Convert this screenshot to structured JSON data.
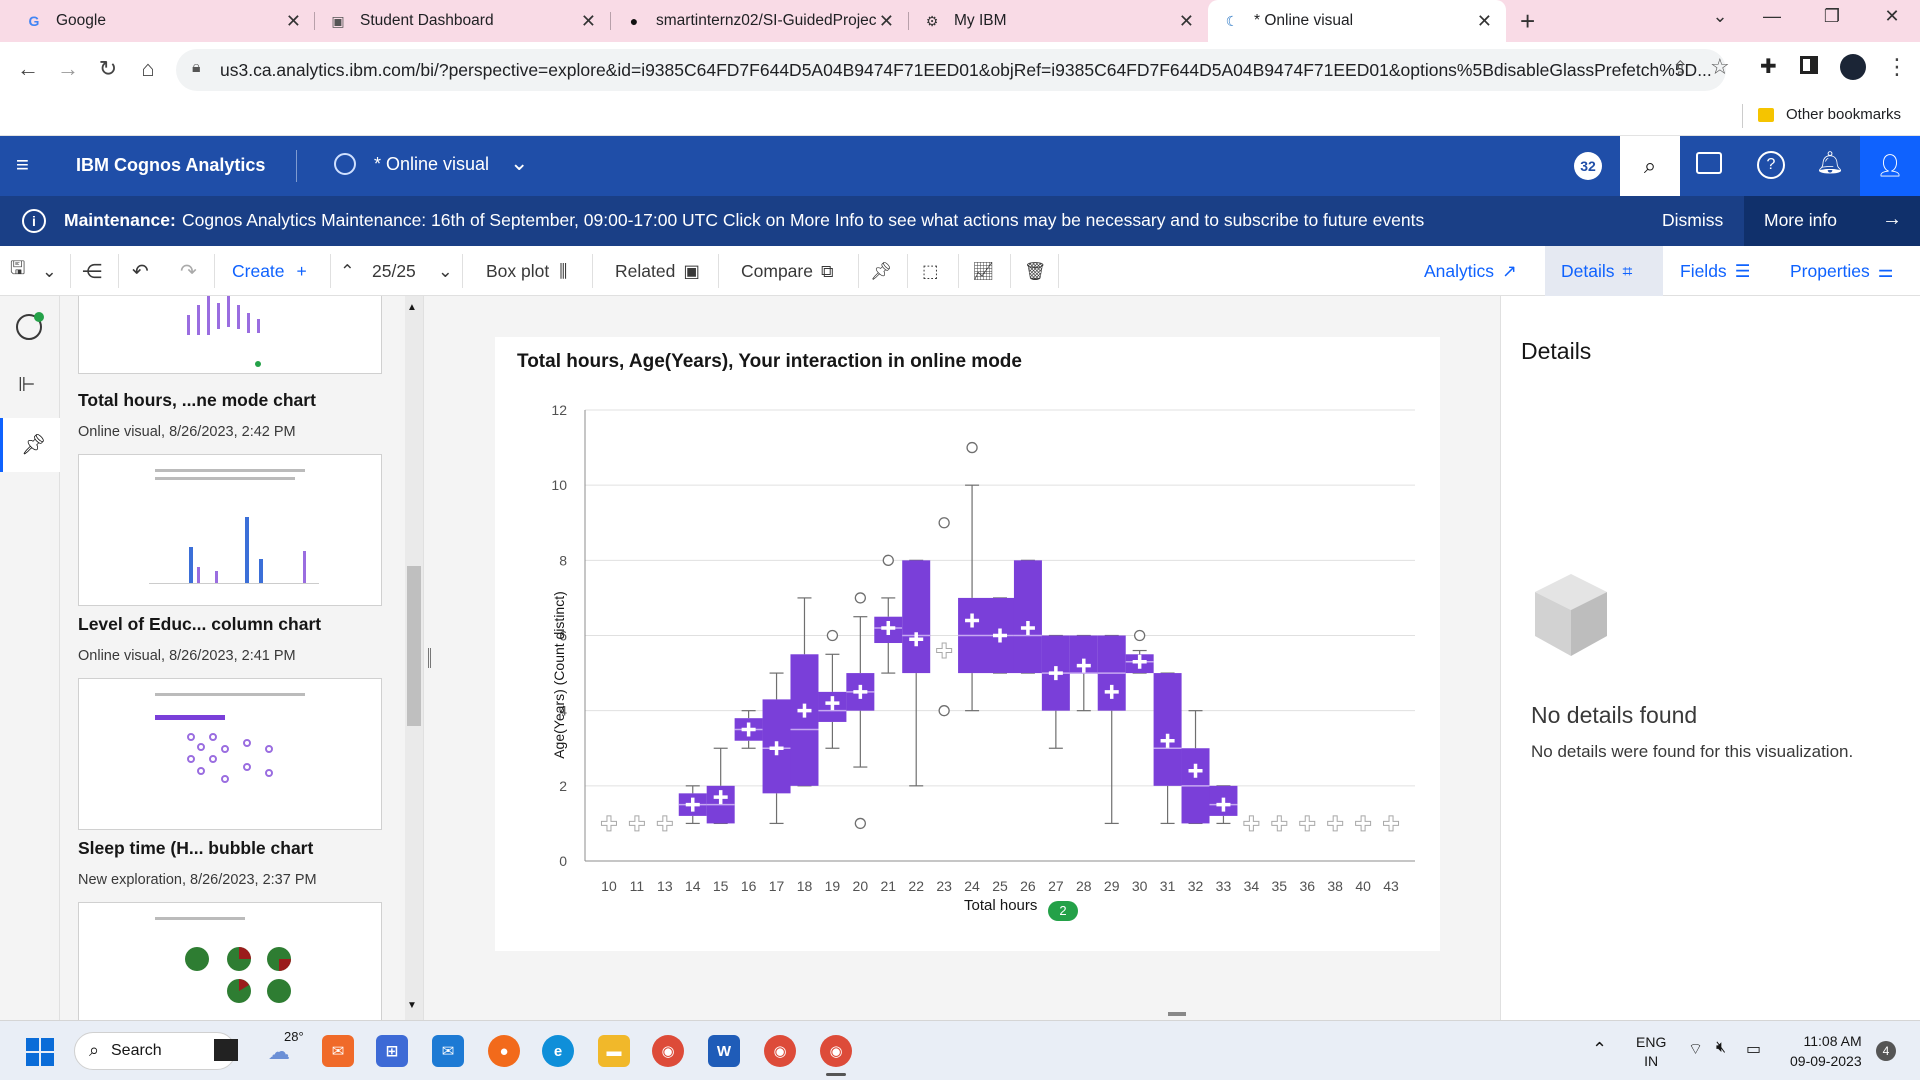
{
  "browser": {
    "tabs": [
      {
        "title": "Google",
        "icon": "G"
      },
      {
        "title": "Student Dashboard",
        "icon": "▣"
      },
      {
        "title": "smartinternz02/SI-GuidedProject",
        "icon": "●"
      },
      {
        "title": "My IBM",
        "icon": "⚙"
      },
      {
        "title": "* Online visual",
        "icon": "☾"
      }
    ],
    "url": "us3.ca.analytics.ibm.com/bi/?perspective=explore&id=i9385C64FD7F644D5A04B9474F71EED01&objRef=i9385C64FD7F644D5A04B9474F71EED01&options%5BdisableGlassPrefetch%5D...",
    "bookmark": "Other bookmarks"
  },
  "app": {
    "name": "IBM Cognos Analytics",
    "doc_title": "* Online visual",
    "notif_count": "32"
  },
  "maintenance": {
    "label": "Maintenance:",
    "text": "Cognos Analytics Maintenance: 16th of September, 09:00-17:00 UTC Click on More Info to see what actions may be necessary and to subscribe to future events",
    "dismiss": "Dismiss",
    "more": "More info"
  },
  "toolbar": {
    "create": "Create",
    "page": "25/25",
    "chart_type": "Box plot",
    "related": "Related",
    "compare": "Compare",
    "analytics": "Analytics",
    "details": "Details",
    "fields": "Fields",
    "properties": "Properties"
  },
  "items": [
    {
      "title": "Total hours, ...ne mode chart",
      "sub": "Online visual, 8/26/2023, 2:42 PM"
    },
    {
      "title": "Level of Educ... column chart",
      "sub": "Online visual, 8/26/2023, 2:41 PM"
    },
    {
      "title": "Sleep time (H... bubble chart",
      "sub": "New exploration, 8/26/2023, 2:37 PM"
    }
  ],
  "details": {
    "heading": "Details",
    "empty_title": "No details found",
    "empty_text": "No details were found for this visualization."
  },
  "taskbar": {
    "search": "Search",
    "temp": "28°",
    "lang1": "ENG",
    "lang2": "IN",
    "time": "11:08 AM",
    "date": "09-09-2023",
    "badge": "4"
  },
  "chart_data": {
    "type": "box",
    "title": "Total hours, Age(Years), Your interaction in online mode",
    "xlabel": "Total hours",
    "xlabel_badge": "2",
    "ylabel": "Age(Years) (Count distinct)",
    "ylim": [
      0,
      12
    ],
    "yticks": [
      0,
      2,
      4,
      6,
      8,
      10,
      12
    ],
    "grid": true,
    "color": "#7a3fd9",
    "categories": [
      "10",
      "11",
      "13",
      "14",
      "15",
      "16",
      "17",
      "18",
      "19",
      "20",
      "21",
      "22",
      "23",
      "24",
      "25",
      "26",
      "27",
      "28",
      "29",
      "30",
      "31",
      "32",
      "33",
      "34",
      "35",
      "36",
      "38",
      "40",
      "43"
    ],
    "boxes": [
      {
        "min": 1,
        "q1": 1,
        "median": 1,
        "q3": 1,
        "max": 1,
        "mean": 1,
        "outliers": []
      },
      {
        "min": 1,
        "q1": 1,
        "median": 1,
        "q3": 1,
        "max": 1,
        "mean": 1,
        "outliers": []
      },
      {
        "min": 1,
        "q1": 1,
        "median": 1,
        "q3": 1,
        "max": 1,
        "mean": 1,
        "outliers": []
      },
      {
        "min": 1,
        "q1": 1.2,
        "median": 1.5,
        "q3": 1.8,
        "max": 2,
        "mean": 1.5,
        "outliers": []
      },
      {
        "min": 1,
        "q1": 1,
        "median": 1.5,
        "q3": 2,
        "max": 3,
        "mean": 1.7,
        "outliers": []
      },
      {
        "min": 3,
        "q1": 3.2,
        "median": 3.5,
        "q3": 3.8,
        "max": 4,
        "mean": 3.5,
        "outliers": []
      },
      {
        "min": 1,
        "q1": 1.8,
        "median": 3,
        "q3": 4.3,
        "max": 5,
        "mean": 3,
        "outliers": []
      },
      {
        "min": 2,
        "q1": 2,
        "median": 3.5,
        "q3": 5.5,
        "max": 7,
        "mean": 4,
        "outliers": []
      },
      {
        "min": 3,
        "q1": 3.7,
        "median": 4,
        "q3": 4.5,
        "max": 5.5,
        "mean": 4.2,
        "outliers": [
          6
        ]
      },
      {
        "min": 2.5,
        "q1": 4,
        "median": 4.5,
        "q3": 5,
        "max": 6.5,
        "mean": 4.5,
        "outliers": [
          1,
          7
        ]
      },
      {
        "min": 5,
        "q1": 5.8,
        "median": 6.2,
        "q3": 6.5,
        "max": 7,
        "mean": 6.2,
        "outliers": [
          8
        ]
      },
      {
        "min": 2,
        "q1": 5,
        "median": 6,
        "q3": 8,
        "max": 8,
        "mean": 5.9,
        "outliers": []
      },
      {
        "min": 5,
        "q1": 5,
        "median": 5,
        "q3": 5,
        "max": 5,
        "mean": 5.6,
        "outliers": [
          4,
          9
        ]
      },
      {
        "min": 4,
        "q1": 5,
        "median": 6,
        "q3": 7,
        "max": 10,
        "mean": 6.4,
        "outliers": [
          11
        ]
      },
      {
        "min": 5,
        "q1": 5,
        "median": 6,
        "q3": 7,
        "max": 7,
        "mean": 6,
        "outliers": []
      },
      {
        "min": 5,
        "q1": 5,
        "median": 6,
        "q3": 8,
        "max": 8,
        "mean": 6.2,
        "outliers": []
      },
      {
        "min": 3,
        "q1": 4,
        "median": 5,
        "q3": 6,
        "max": 6,
        "mean": 5,
        "outliers": []
      },
      {
        "min": 4,
        "q1": 5,
        "median": 5,
        "q3": 6,
        "max": 6,
        "mean": 5.2,
        "outliers": []
      },
      {
        "min": 1,
        "q1": 4,
        "median": 5,
        "q3": 6,
        "max": 6,
        "mean": 4.5,
        "outliers": []
      },
      {
        "min": 5,
        "q1": 5,
        "median": 5.3,
        "q3": 5.5,
        "max": 5.6,
        "mean": 5.3,
        "outliers": [
          6
        ]
      },
      {
        "min": 1,
        "q1": 2,
        "median": 3,
        "q3": 5,
        "max": 5,
        "mean": 3.2,
        "outliers": []
      },
      {
        "min": 1,
        "q1": 1,
        "median": 2,
        "q3": 3,
        "max": 4,
        "mean": 2.4,
        "outliers": []
      },
      {
        "min": 1,
        "q1": 1.2,
        "median": 1.5,
        "q3": 2,
        "max": 2,
        "mean": 1.5,
        "outliers": []
      },
      {
        "min": 1,
        "q1": 1,
        "median": 1,
        "q3": 1,
        "max": 1,
        "mean": 1,
        "outliers": []
      },
      {
        "min": 1,
        "q1": 1,
        "median": 1,
        "q3": 1,
        "max": 1,
        "mean": 1,
        "outliers": []
      },
      {
        "min": 1,
        "q1": 1,
        "median": 1,
        "q3": 1,
        "max": 1,
        "mean": 1,
        "outliers": []
      },
      {
        "min": 1,
        "q1": 1,
        "median": 1,
        "q3": 1,
        "max": 1,
        "mean": 1,
        "outliers": []
      },
      {
        "min": 1,
        "q1": 1,
        "median": 1,
        "q3": 1,
        "max": 1,
        "mean": 1,
        "outliers": []
      },
      {
        "min": 1,
        "q1": 1,
        "median": 1,
        "q3": 1,
        "max": 1,
        "mean": 1,
        "outliers": []
      }
    ]
  }
}
